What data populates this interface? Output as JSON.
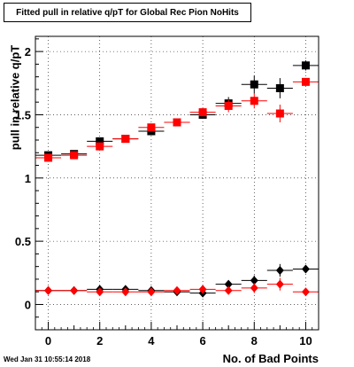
{
  "title": "Fitted pull in relative q/pT for Global Rec Pion NoHits",
  "timestamp": "Wed Jan 31 10:55:14 2018",
  "chart_data": {
    "type": "scatter",
    "title": "Fitted pull in relative q/pT for Global Rec Pion NoHits",
    "xlabel": "No. of Bad Points",
    "ylabel": "pull in relative q/pT",
    "xlim": [
      -0.5,
      10.5
    ],
    "ylim": [
      -0.2,
      2.12
    ],
    "x_ticks": [
      "0",
      "2",
      "4",
      "6",
      "8",
      "10"
    ],
    "y_ticks": [
      "0",
      "0.5",
      "1",
      "1.5",
      "2"
    ],
    "grid": true,
    "series": [
      {
        "marker": "square",
        "color": "#000000",
        "x": [
          0,
          1,
          2,
          3,
          4,
          5,
          6,
          7,
          8,
          9,
          10
        ],
        "y": [
          1.18,
          1.19,
          1.29,
          1.31,
          1.37,
          1.44,
          1.5,
          1.59,
          1.74,
          1.71,
          1.89
        ],
        "yerr": [
          0.02,
          0.02,
          0.02,
          0.02,
          0.02,
          0.02,
          0.03,
          0.05,
          0.07,
          0.08,
          0.04
        ]
      },
      {
        "marker": "square",
        "color": "#ff0000",
        "x": [
          0,
          1,
          2,
          3,
          4,
          5,
          6,
          7,
          8,
          9,
          10
        ],
        "y": [
          1.16,
          1.18,
          1.25,
          1.31,
          1.4,
          1.44,
          1.52,
          1.57,
          1.61,
          1.51,
          1.76
        ],
        "yerr": [
          0.02,
          0.02,
          0.02,
          0.02,
          0.02,
          0.02,
          0.03,
          0.05,
          0.06,
          0.07,
          0.03
        ]
      },
      {
        "marker": "diamond",
        "color": "#000000",
        "x": [
          0,
          1,
          2,
          3,
          4,
          5,
          6,
          7,
          8,
          9,
          10
        ],
        "y": [
          0.11,
          0.11,
          0.12,
          0.12,
          0.11,
          0.1,
          0.09,
          0.16,
          0.19,
          0.27,
          0.28
        ],
        "yerr": [
          0.01,
          0.01,
          0.01,
          0.01,
          0.01,
          0.01,
          0.02,
          0.03,
          0.04,
          0.05,
          0.03
        ]
      },
      {
        "marker": "diamond",
        "color": "#ff0000",
        "x": [
          0,
          1,
          2,
          3,
          4,
          5,
          6,
          7,
          8,
          9,
          10
        ],
        "y": [
          0.11,
          0.11,
          0.1,
          0.1,
          0.1,
          0.11,
          0.12,
          0.11,
          0.13,
          0.16,
          0.1
        ],
        "yerr": [
          0.01,
          0.01,
          0.01,
          0.01,
          0.01,
          0.01,
          0.02,
          0.03,
          0.04,
          0.05,
          0.02
        ]
      }
    ]
  }
}
